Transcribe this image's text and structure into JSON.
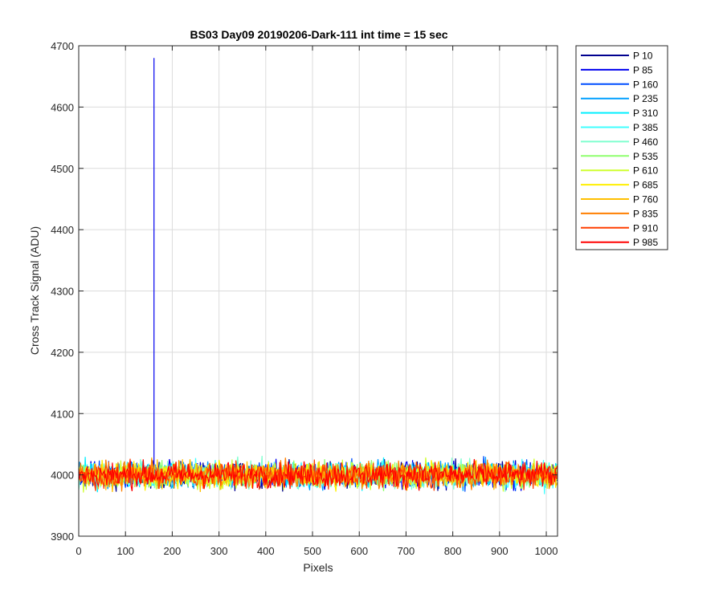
{
  "chart_data": {
    "type": "line",
    "title": "BS03 Day09 20190206-Dark-111 int time = 15 sec",
    "xlabel": "Pixels",
    "ylabel": "Cross Track Signal (ADU)",
    "xlim": [
      0,
      1024
    ],
    "ylim": [
      3900,
      4700
    ],
    "xticks": [
      0,
      100,
      200,
      300,
      400,
      500,
      600,
      700,
      800,
      900,
      1000
    ],
    "yticks": [
      3900,
      4000,
      4100,
      4200,
      4300,
      4400,
      4500,
      4600,
      4700
    ],
    "grid": true,
    "legend_position": "outside-top-right",
    "baseline": 4000,
    "noise_halfwidth": 20,
    "spike": {
      "series": "P 85",
      "x": 161,
      "y": 4680
    },
    "series": [
      {
        "name": "P 10",
        "color": "#00008F"
      },
      {
        "name": "P 85",
        "color": "#0000EF"
      },
      {
        "name": "P 160",
        "color": "#004FFF"
      },
      {
        "name": "P 235",
        "color": "#009FFF"
      },
      {
        "name": "P 310",
        "color": "#00EFFF"
      },
      {
        "name": "P 385",
        "color": "#3FFFFF"
      },
      {
        "name": "P 460",
        "color": "#7FFFCF"
      },
      {
        "name": "P 535",
        "color": "#8FFF6F"
      },
      {
        "name": "P 610",
        "color": "#CFFF2F"
      },
      {
        "name": "P 685",
        "color": "#FFEF00"
      },
      {
        "name": "P 760",
        "color": "#FFBF00"
      },
      {
        "name": "P 835",
        "color": "#FF7F00"
      },
      {
        "name": "P 910",
        "color": "#FF3F00"
      },
      {
        "name": "P 985",
        "color": "#FF0000"
      }
    ]
  }
}
